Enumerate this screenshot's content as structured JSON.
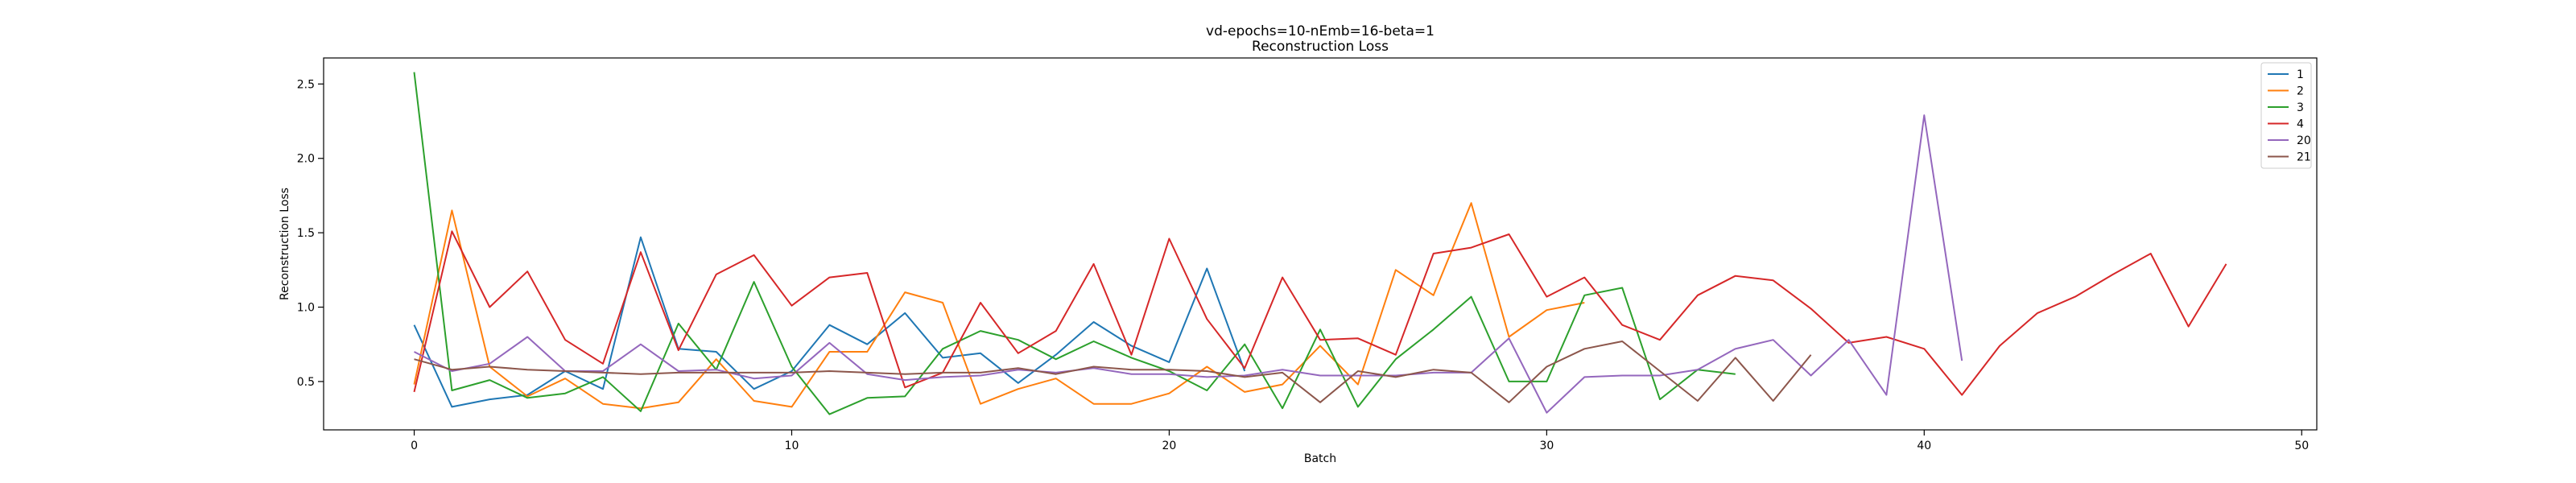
{
  "chart_data": {
    "type": "line",
    "title": "vd-epochs=10-nEmb=16-beta=1",
    "subtitle": "Reconstruction Loss",
    "xlabel": "Batch",
    "ylabel": "Reconstruction Loss",
    "xlim": [
      -2.4,
      50.4
    ],
    "ylim": [
      0.175,
      2.675
    ],
    "xticks": [
      0,
      10,
      20,
      30,
      40,
      50
    ],
    "yticks": [
      0.5,
      1.0,
      1.5,
      2.0,
      2.5
    ],
    "xtick_labels": [
      "0",
      "10",
      "20",
      "30",
      "40",
      "50"
    ],
    "ytick_labels": [
      "0.5",
      "1.0",
      "1.5",
      "2.0",
      "2.5"
    ],
    "grid": false,
    "legend_position": "top-right",
    "series": [
      {
        "name": "1",
        "color": "#1f77b4",
        "values": [
          0.88,
          0.33,
          0.38,
          0.41,
          0.57,
          0.45,
          1.47,
          0.72,
          0.7,
          0.45,
          0.57,
          0.88,
          0.75,
          0.96,
          0.66,
          0.69,
          0.49,
          0.68,
          0.9,
          0.74,
          0.63,
          1.26,
          0.57
        ]
      },
      {
        "name": "2",
        "color": "#ff7f0e",
        "values": [
          0.48,
          1.65,
          0.6,
          0.4,
          0.52,
          0.35,
          0.32,
          0.36,
          0.65,
          0.37,
          0.33,
          0.7,
          0.7,
          1.1,
          1.03,
          0.35,
          0.45,
          0.52,
          0.35,
          0.35,
          0.42,
          0.6,
          0.43,
          0.48,
          0.74,
          0.48,
          1.25,
          1.08,
          1.7,
          0.8,
          0.98,
          1.03
        ]
      },
      {
        "name": "3",
        "color": "#2ca02c",
        "values": [
          2.58,
          0.44,
          0.51,
          0.39,
          0.42,
          0.53,
          0.3,
          0.89,
          0.58,
          1.17,
          0.6,
          0.28,
          0.39,
          0.4,
          0.72,
          0.84,
          0.78,
          0.65,
          0.77,
          0.66,
          0.57,
          0.44,
          0.75,
          0.32,
          0.85,
          0.33,
          0.65,
          0.85,
          1.07,
          0.5,
          0.5,
          1.08,
          1.13,
          0.38,
          0.58,
          0.55
        ]
      },
      {
        "name": "4",
        "color": "#d62728",
        "values": [
          0.43,
          1.51,
          1.0,
          1.24,
          0.78,
          0.62,
          1.37,
          0.71,
          1.22,
          1.35,
          1.01,
          1.2,
          1.23,
          0.46,
          0.56,
          1.03,
          0.69,
          0.84,
          1.29,
          0.68,
          1.46,
          0.92,
          0.59,
          1.2,
          0.78,
          0.79,
          0.68,
          1.36,
          1.4,
          1.49,
          1.07,
          1.2,
          0.88,
          0.78,
          1.08,
          1.21,
          1.18,
          0.99,
          0.76,
          0.8,
          0.72,
          0.41,
          0.74,
          0.96,
          1.07,
          1.22,
          1.36,
          0.87,
          1.29
        ]
      },
      {
        "name": "20",
        "color": "#9467bd",
        "values": [
          0.7,
          0.57,
          0.62,
          0.8,
          0.57,
          0.57,
          0.75,
          0.57,
          0.58,
          0.52,
          0.54,
          0.76,
          0.55,
          0.51,
          0.53,
          0.54,
          0.58,
          0.56,
          0.59,
          0.55,
          0.55,
          0.53,
          0.54,
          0.58,
          0.54,
          0.54,
          0.54,
          0.56,
          0.56,
          0.79,
          0.29,
          0.53,
          0.54,
          0.54,
          0.58,
          0.72,
          0.78,
          0.54,
          0.78,
          0.41,
          2.29,
          0.64
        ]
      },
      {
        "name": "21",
        "color": "#8c564b",
        "values": [
          0.65,
          0.58,
          0.6,
          0.58,
          0.57,
          0.56,
          0.55,
          0.56,
          0.56,
          0.56,
          0.56,
          0.57,
          0.56,
          0.55,
          0.56,
          0.56,
          0.59,
          0.55,
          0.6,
          0.58,
          0.58,
          0.57,
          0.53,
          0.56,
          0.36,
          0.57,
          0.53,
          0.58,
          0.56,
          0.36,
          0.6,
          0.72,
          0.77,
          0.57,
          0.37,
          0.66,
          0.37,
          0.68
        ]
      }
    ]
  }
}
